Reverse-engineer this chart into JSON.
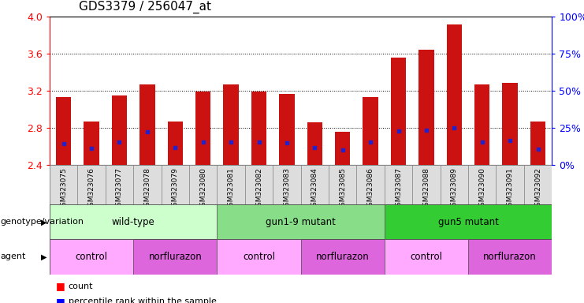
{
  "title": "GDS3379 / 256047_at",
  "samples": [
    "GSM323075",
    "GSM323076",
    "GSM323077",
    "GSM323078",
    "GSM323079",
    "GSM323080",
    "GSM323081",
    "GSM323082",
    "GSM323083",
    "GSM323084",
    "GSM323085",
    "GSM323086",
    "GSM323087",
    "GSM323088",
    "GSM323089",
    "GSM323090",
    "GSM323091",
    "GSM323092"
  ],
  "bar_heights": [
    3.13,
    2.87,
    3.15,
    3.27,
    2.87,
    3.19,
    3.27,
    3.19,
    3.17,
    2.86,
    2.76,
    3.13,
    3.56,
    3.64,
    3.92,
    3.27,
    3.29,
    2.87
  ],
  "blue_dot_y": [
    2.63,
    2.58,
    2.65,
    2.76,
    2.59,
    2.65,
    2.65,
    2.65,
    2.64,
    2.59,
    2.56,
    2.65,
    2.77,
    2.78,
    2.8,
    2.65,
    2.67,
    2.57
  ],
  "y_min": 2.4,
  "y_max": 4.0,
  "y_ticks": [
    2.4,
    2.8,
    3.2,
    3.6,
    4.0
  ],
  "y_right_ticks": [
    0,
    25,
    50,
    75,
    100
  ],
  "bar_color": "#CC1111",
  "blue_dot_color": "#2222CC",
  "bar_bottom": 2.4,
  "genotype_groups": [
    {
      "label": "wild-type",
      "start": 0,
      "end": 5,
      "color": "#ccffcc"
    },
    {
      "label": "gun1-9 mutant",
      "start": 6,
      "end": 11,
      "color": "#88dd88"
    },
    {
      "label": "gun5 mutant",
      "start": 12,
      "end": 17,
      "color": "#33cc33"
    }
  ],
  "agent_groups": [
    {
      "label": "control",
      "start": 0,
      "end": 2,
      "color": "#ffaaff"
    },
    {
      "label": "norflurazon",
      "start": 3,
      "end": 5,
      "color": "#dd66dd"
    },
    {
      "label": "control",
      "start": 6,
      "end": 8,
      "color": "#ffaaff"
    },
    {
      "label": "norflurazon",
      "start": 9,
      "end": 11,
      "color": "#dd66dd"
    },
    {
      "label": "control",
      "start": 12,
      "end": 14,
      "color": "#ffaaff"
    },
    {
      "label": "norflurazon",
      "start": 15,
      "end": 17,
      "color": "#dd66dd"
    }
  ],
  "background_color": "#ffffff",
  "title_fontsize": 11,
  "tick_fontsize": 9,
  "bar_width": 0.55
}
